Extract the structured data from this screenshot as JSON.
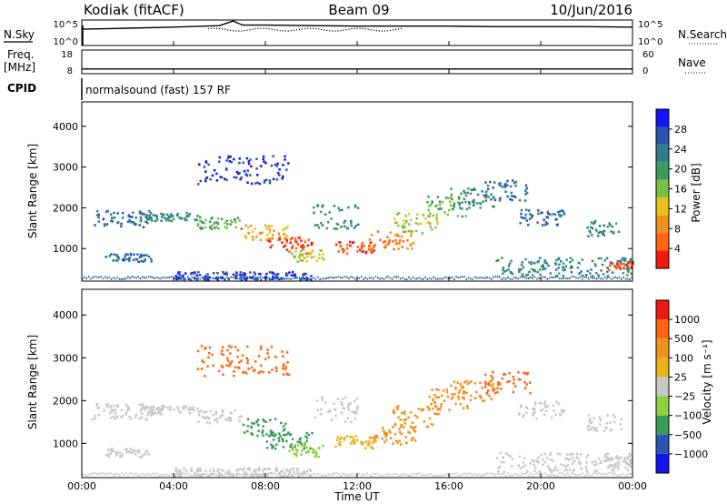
{
  "header": {
    "station": "Kodiak (fitACF)",
    "beam": "Beam 09",
    "date": "10/Jun/2016"
  },
  "params": {
    "nsky_label": "N.Sky",
    "nsky_ticks": [
      "10^5",
      "10^0"
    ],
    "nsearch_label": "N.Search",
    "nsearch_ticks": [
      "10^5",
      "10^0"
    ],
    "freq_label": "Freq.",
    "freq_unit": "[MHz]",
    "freq_ticks": [
      "18",
      "8"
    ],
    "nave_label": "Nave",
    "nave_ticks": [
      "60",
      "0"
    ],
    "cpid_label": "CPID",
    "cpid_text": "normalsound (fast) 157 RF"
  },
  "colors": {
    "power": [
      "#1414f0",
      "#2a55b0",
      "#2f7d8f",
      "#3c9a5a",
      "#7bc043",
      "#e8c21a",
      "#f0901e",
      "#ff6410",
      "#ee1a10"
    ],
    "velocity": [
      "#ee1a10",
      "#ff6410",
      "#f0901e",
      "#e8b218",
      "#c8c8c8",
      "#8ecf3c",
      "#3c9a5a",
      "#2a55b0",
      "#1414f0"
    ]
  },
  "chart_data": [
    {
      "type": "line",
      "name": "N.Sky",
      "x": [
        0,
        2,
        4,
        6,
        6.6,
        7,
        8,
        10,
        12,
        14,
        16,
        18,
        20,
        22,
        24
      ],
      "values": [
        3.2,
        3.4,
        3.6,
        3.9,
        4.8,
        4.0,
        4.0,
        3.9,
        3.8,
        3.8,
        3.8,
        3.7,
        3.7,
        3.7,
        3.6
      ],
      "ylim": [
        0,
        5
      ],
      "xlim": [
        0,
        24
      ]
    },
    {
      "type": "line",
      "name": "Freq.",
      "x": [
        0,
        4,
        8,
        12,
        16,
        20,
        24
      ],
      "values": [
        10,
        10,
        10,
        10,
        10,
        10,
        10
      ],
      "ylim": [
        8,
        18
      ],
      "xlim": [
        0,
        24
      ]
    },
    {
      "type": "heatmap",
      "title": "Power",
      "xlabel": "Time UT",
      "ylabel": "Slant Range [km]",
      "colorbar_label": "Power [dB]",
      "colorbar_ticks": [
        "28",
        "24",
        "20",
        "16",
        "12",
        "8",
        "4"
      ],
      "xlim": [
        0,
        24
      ],
      "ylim": [
        200,
        4600
      ],
      "xticks": [
        "00:00",
        "04:00",
        "08:00",
        "12:00",
        "16:00",
        "20:00",
        "00:00"
      ],
      "yticks": [
        "1000",
        "2000",
        "3000",
        "4000"
      ],
      "zlim": [
        0,
        32
      ]
    },
    {
      "type": "heatmap",
      "title": "Velocity",
      "xlabel": "Time UT",
      "ylabel": "Slant Range [km]",
      "colorbar_label": "Velocity [m s⁻¹]",
      "colorbar_ticks": [
        "1000",
        "500",
        "100",
        "25",
        "−25",
        "−100",
        "−500",
        "−1000"
      ],
      "xlim": [
        0,
        24
      ],
      "ylim": [
        200,
        4600
      ],
      "xticks": [
        "00:00",
        "04:00",
        "08:00",
        "12:00",
        "16:00",
        "20:00",
        "00:00"
      ],
      "yticks": [
        "1000",
        "2000",
        "3000",
        "4000"
      ]
    }
  ],
  "xaxis": {
    "title": "Time UT"
  }
}
